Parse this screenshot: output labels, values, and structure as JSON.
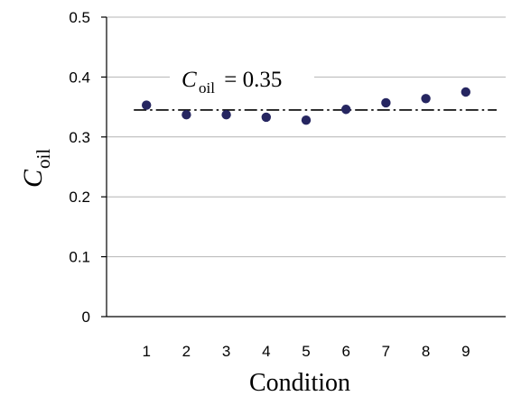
{
  "chart_data": {
    "type": "scatter",
    "title": "",
    "xlabel": "Condition",
    "ylabel": {
      "main": "C",
      "sub": "oil"
    },
    "x": [
      1,
      2,
      3,
      4,
      5,
      6,
      7,
      8,
      9
    ],
    "xticks": [
      "1",
      "2",
      "3",
      "4",
      "5",
      "6",
      "7",
      "8",
      "9"
    ],
    "xlim": [
      0,
      10
    ],
    "ylim": [
      0,
      0.5
    ],
    "yticks": [
      "0",
      "0.1",
      "0.2",
      "0.3",
      "0.4",
      "0.5"
    ],
    "grid": "horizontal",
    "legend": "none",
    "series": [
      {
        "values": [
          0.353,
          0.337,
          0.337,
          0.333,
          0.328,
          0.346,
          0.357,
          0.364,
          0.375
        ],
        "color": "#262661"
      }
    ],
    "reference_line": {
      "y": 0.345,
      "style": "dash-dot",
      "color": "#000000"
    },
    "annotation": {
      "main": "C",
      "sub": "oil",
      "rest": " = 0.35"
    }
  }
}
